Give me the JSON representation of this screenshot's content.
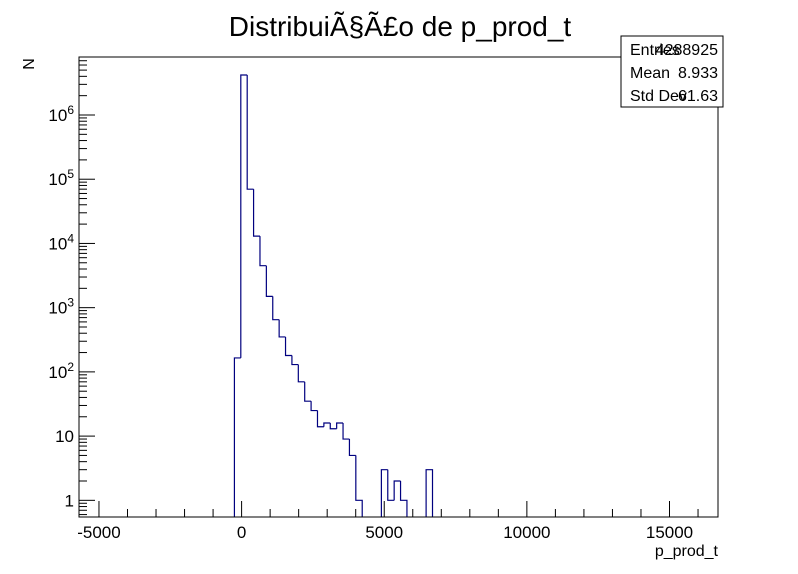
{
  "chart_data": {
    "type": "bar",
    "title": "DistribuiÃ§Ã£o de p_prod_t",
    "xlabel": "p_prod_t",
    "ylabel": "N",
    "xlim": [
      -5700,
      16700
    ],
    "ylim": [
      0.55,
      8000000
    ],
    "y_scale": "log",
    "x_ticks": [
      -5000,
      0,
      5000,
      10000,
      15000
    ],
    "y_ticks": [
      {
        "value": 1,
        "label": "1"
      },
      {
        "value": 10,
        "label": "10"
      },
      {
        "value": 100,
        "label": "10^2"
      },
      {
        "value": 1000,
        "label": "10^3"
      },
      {
        "value": 10000,
        "label": "10^4"
      },
      {
        "value": 100000,
        "label": "10^5"
      },
      {
        "value": 1000000,
        "label": "10^6"
      }
    ],
    "bin_width": 224,
    "bins": [
      {
        "x": -252,
        "y": 165
      },
      {
        "x": -28,
        "y": 4200000
      },
      {
        "x": 196,
        "y": 70000
      },
      {
        "x": 420,
        "y": 13000
      },
      {
        "x": 644,
        "y": 4500
      },
      {
        "x": 868,
        "y": 1500
      },
      {
        "x": 1092,
        "y": 650
      },
      {
        "x": 1316,
        "y": 350
      },
      {
        "x": 1540,
        "y": 180
      },
      {
        "x": 1764,
        "y": 130
      },
      {
        "x": 1988,
        "y": 70
      },
      {
        "x": 2212,
        "y": 35
      },
      {
        "x": 2436,
        "y": 25
      },
      {
        "x": 2660,
        "y": 14
      },
      {
        "x": 2884,
        "y": 16
      },
      {
        "x": 3108,
        "y": 13
      },
      {
        "x": 3332,
        "y": 16
      },
      {
        "x": 3556,
        "y": 9
      },
      {
        "x": 3780,
        "y": 5
      },
      {
        "x": 4004,
        "y": 1
      },
      {
        "x": 4900,
        "y": 3
      },
      {
        "x": 5124,
        "y": 1
      },
      {
        "x": 5348,
        "y": 2
      },
      {
        "x": 5572,
        "y": 1
      },
      {
        "x": 6468,
        "y": 3
      }
    ],
    "grid": false,
    "line_color": "#00007f",
    "stats": [
      {
        "label": "Entries",
        "value": "4288925"
      },
      {
        "label": "Mean",
        "value": "8.933"
      },
      {
        "label": "Std Dev",
        "value": "61.63"
      }
    ]
  }
}
